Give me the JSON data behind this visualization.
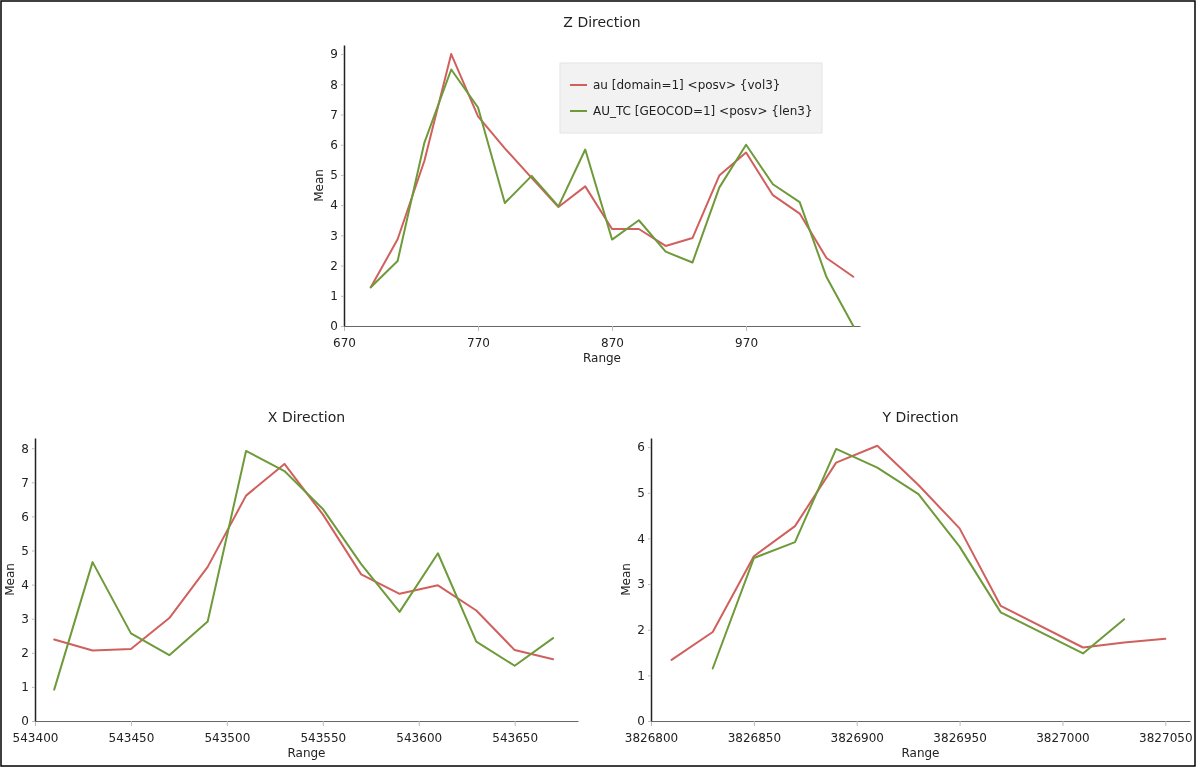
{
  "chart_data": [
    {
      "type": "line",
      "title": "Z Direction",
      "xlabel": "Range",
      "ylabel": "Mean",
      "xlim": [
        670,
        1055
      ],
      "xticks": [
        670,
        770,
        870,
        970
      ],
      "ylim": [
        0,
        9.3
      ],
      "yticks": [
        0,
        1,
        2,
        3,
        4,
        5,
        6,
        7,
        8,
        9
      ],
      "legend": "top right",
      "x": [
        690,
        710,
        730,
        750,
        770,
        790,
        810,
        830,
        850,
        870,
        890,
        910,
        930,
        950,
        970,
        990,
        1010,
        1030,
        1050
      ],
      "series": [
        {
          "name": "au [domain=1] <posv> {vol3}",
          "color": "#d0605e",
          "values": [
            1.28,
            2.87,
            5.47,
            9.0,
            6.94,
            5.88,
            4.9,
            3.94,
            4.62,
            3.21,
            3.21,
            2.65,
            2.91,
            4.98,
            5.74,
            4.33,
            3.72,
            2.25,
            1.63
          ]
        },
        {
          "name": "AU_TC [GEOCOD=1] <posv> {len3}",
          "color": "#6e9a3a",
          "values": [
            1.28,
            2.15,
            6.07,
            8.49,
            7.23,
            4.07,
            4.97,
            3.96,
            5.84,
            2.86,
            3.5,
            2.46,
            2.1,
            4.58,
            6.0,
            4.69,
            4.1,
            1.62,
            0
          ]
        }
      ]
    },
    {
      "type": "line",
      "title": "X Direction",
      "xlabel": "Range",
      "ylabel": "Mean",
      "xlim": [
        543400,
        543683
      ],
      "xticks": [
        543400,
        543450,
        543500,
        543550,
        543600,
        543650
      ],
      "ylim": [
        0,
        8.3
      ],
      "yticks": [
        0,
        1,
        2,
        3,
        4,
        5,
        6,
        7,
        8
      ],
      "x": [
        543410,
        543430,
        543450,
        543470,
        543490,
        543510,
        543530,
        543550,
        543570,
        543590,
        543610,
        543630,
        543650,
        543670
      ],
      "series": [
        {
          "color": "#d0605e",
          "values": [
            2.39,
            2.07,
            2.11,
            3.02,
            4.52,
            6.61,
            7.54,
            6.06,
            4.3,
            3.73,
            3.98,
            3.24,
            2.08,
            1.81
          ]
        },
        {
          "color": "#6e9a3a",
          "values": [
            0.92,
            4.66,
            2.57,
            1.93,
            2.92,
            7.92,
            7.33,
            6.22,
            4.6,
            3.2,
            4.92,
            2.33,
            1.62,
            2.43
          ]
        }
      ]
    },
    {
      "type": "line",
      "title": "Y Direction",
      "xlabel": "Range",
      "ylabel": "Mean",
      "xlim": [
        3826800,
        3827062
      ],
      "xticks": [
        3826800,
        3826850,
        3826900,
        3826950,
        3827000,
        3827050
      ],
      "ylim": [
        0,
        6.2
      ],
      "yticks": [
        0,
        1,
        2,
        3,
        4,
        5,
        6
      ],
      "series": [
        {
          "color": "#d0605e",
          "x": [
            3826810,
            3826830,
            3826850,
            3826870,
            3826890,
            3826910,
            3826930,
            3826950,
            3826970,
            3827010,
            3827030,
            3827050
          ],
          "values": [
            1.34,
            1.95,
            3.61,
            4.27,
            5.66,
            6.03,
            5.17,
            4.22,
            2.52,
            1.61,
            1.72,
            1.8
          ]
        },
        {
          "color": "#6e9a3a",
          "x": [
            3826830,
            3826850,
            3826870,
            3826890,
            3826910,
            3826930,
            3826950,
            3826970,
            3827010,
            3827030
          ],
          "values": [
            1.15,
            3.57,
            3.92,
            5.96,
            5.55,
            4.97,
            3.82,
            2.38,
            1.48,
            2.23
          ]
        }
      ]
    }
  ]
}
